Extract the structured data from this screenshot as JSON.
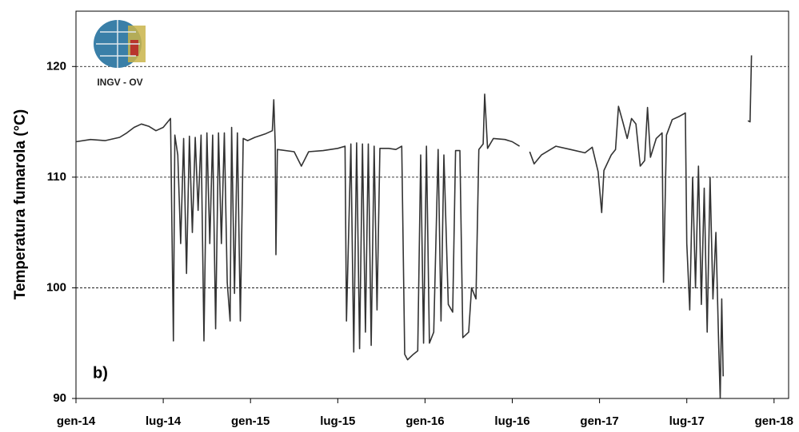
{
  "chart_data": {
    "type": "line",
    "y_label": "Temperatura fumarola  (°C)",
    "panel_label": "b)",
    "logo_text": "INGV - OV",
    "xlim": [
      0,
      49
    ],
    "xticks": [
      {
        "value": 0,
        "label": "gen-14"
      },
      {
        "value": 6,
        "label": "lug-14"
      },
      {
        "value": 12,
        "label": "gen-15"
      },
      {
        "value": 18,
        "label": "lug-15"
      },
      {
        "value": 24,
        "label": "gen-16"
      },
      {
        "value": 30,
        "label": "lug-16"
      },
      {
        "value": 36,
        "label": "gen-17"
      },
      {
        "value": 42,
        "label": "lug-17"
      },
      {
        "value": 48,
        "label": "gen-18"
      }
    ],
    "ylim": [
      90,
      125
    ],
    "yticks": [
      90,
      100,
      110,
      120
    ],
    "grid": true,
    "x": [
      0,
      1,
      2,
      3,
      3.5,
      4,
      4.5,
      5,
      5.5,
      6,
      6.5,
      6.7,
      6.8,
      7.0,
      7.2,
      7.4,
      7.6,
      7.8,
      8.0,
      8.2,
      8.4,
      8.6,
      8.8,
      9.0,
      9.2,
      9.4,
      9.6,
      9.8,
      10.0,
      10.2,
      10.4,
      10.6,
      10.7,
      10.9,
      11.1,
      11.3,
      11.5,
      11.8,
      12.3,
      13.0,
      13.5,
      13.6,
      13.7,
      13.75,
      13.85,
      15,
      15.5,
      16,
      17,
      18,
      18.5,
      18.6,
      18.9,
      19.1,
      19.3,
      19.5,
      19.7,
      19.9,
      20.1,
      20.3,
      20.5,
      20.7,
      20.9,
      21.5,
      22,
      22.4,
      22.6,
      22.8,
      23.2,
      23.5,
      23.7,
      23.9,
      24.1,
      24.3,
      24.6,
      24.9,
      25.1,
      25.3,
      25.6,
      25.9,
      26.1,
      26.4,
      26.6,
      27,
      27.2,
      27.5,
      27.7,
      28,
      28.1,
      28.3,
      28.7,
      29.5,
      30,
      30.5,
      30.8,
      31.2,
      31.5,
      32,
      33,
      34,
      35,
      35.5,
      35.9,
      36.15,
      36.3,
      36.8,
      37.1,
      37.3,
      37.6,
      37.9,
      38.2,
      38.5,
      38.8,
      39.1,
      39.3,
      39.5,
      39.9,
      40.3,
      40.4,
      40.6,
      41,
      41.5,
      41.9,
      42,
      42.2,
      42.4,
      42.6,
      42.8,
      43,
      43.2,
      43.4,
      43.6,
      43.8,
      44,
      44.2,
      44.3,
      44.4,
      44.5,
      45.5,
      46.2,
      46.35,
      46.45
    ],
    "series": [
      {
        "color": "#333333",
        "values": [
          113.2,
          113.4,
          113.3,
          113.6,
          114.0,
          114.5,
          114.8,
          114.6,
          114.2,
          114.5,
          115.3,
          95.2,
          113.8,
          112,
          104,
          113.5,
          101.3,
          113.7,
          105,
          113.6,
          107,
          113.8,
          95.2,
          114,
          104,
          113.8,
          96.3,
          114,
          104,
          114,
          100.5,
          97,
          114.5,
          99.5,
          114,
          97,
          113.5,
          113.3,
          113.6,
          113.9,
          114.2,
          117,
          113,
          103,
          112.5,
          112.3,
          111,
          112.3,
          112.4,
          112.6,
          112.8,
          97,
          113,
          94.2,
          113.1,
          94.5,
          113,
          96,
          113,
          94.8,
          112.8,
          98,
          112.6,
          112.6,
          112.5,
          112.8,
          94,
          93.5,
          94,
          94.3,
          112,
          95,
          112.8,
          95,
          96,
          112.5,
          97,
          112,
          98.5,
          97.8,
          112.4,
          112.4,
          95.5,
          96,
          100,
          99,
          112.5,
          113,
          117.5,
          112.6,
          113.5,
          113.4,
          113.2,
          112.8,
          null,
          112.3,
          111.2,
          112,
          112.8,
          112.5,
          112.2,
          112.7,
          110.5,
          106.8,
          110.6,
          112,
          112.5,
          116.4,
          115,
          113.5,
          115.3,
          114.8,
          111,
          111.5,
          116.3,
          111.8,
          113.5,
          114,
          100.5,
          113.8,
          115.2,
          115.5,
          115.8,
          104,
          98,
          110,
          100,
          111,
          98.5,
          109,
          96,
          110,
          99,
          105,
          94.5,
          90,
          99,
          92,
          null,
          115.1,
          115,
          121
        ]
      }
    ]
  }
}
